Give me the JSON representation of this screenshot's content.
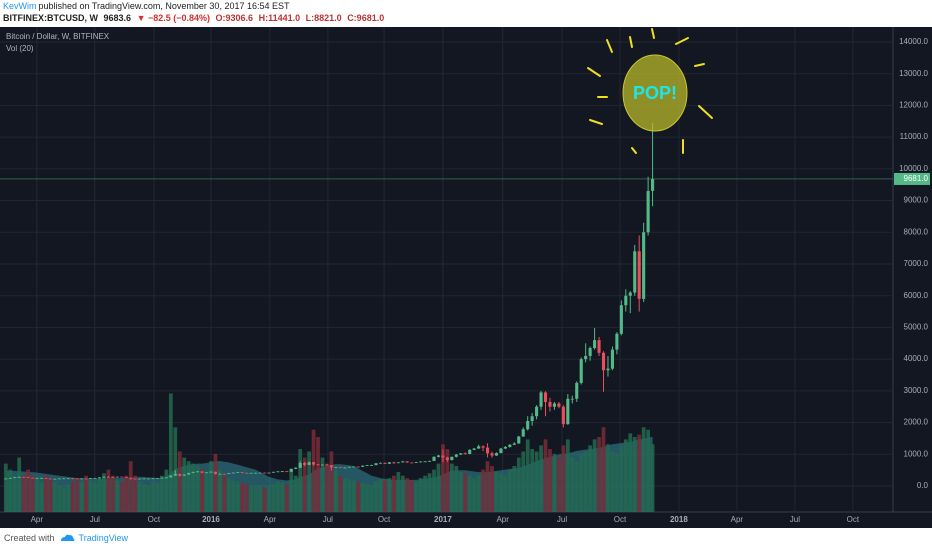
{
  "header": {
    "author": "KevWim",
    "published": "published on TradingView.com, November 30, 2017 16:54 EST",
    "symbol": "BITFINEX:BTCUSD, W",
    "price": "9683.6",
    "change": "▼ −82.5 (−0.84%)",
    "ohlc": [
      "O:9306.6",
      "H:11441.0",
      "L:8821.0",
      "C:9681.0"
    ]
  },
  "footer": {
    "created_with": "Created with",
    "brand": "TradingView"
  },
  "chart_data": {
    "type": "candlestick",
    "title": "Bitcoin / Dollar, W, BITFINEX",
    "volume_label": "Vol (20)",
    "annotation": "POP!",
    "categories": [
      null,
      null,
      null,
      null,
      null,
      null,
      null,
      null,
      null,
      null,
      null,
      null,
      null,
      null,
      null,
      null,
      null,
      null,
      null,
      null,
      null,
      null,
      null,
      null,
      null,
      null,
      null,
      null,
      null,
      null,
      null,
      null,
      null,
      null,
      null,
      null,
      null,
      null,
      null,
      null,
      null,
      null,
      null,
      null,
      null,
      null,
      null,
      null,
      null,
      null,
      null,
      null,
      null,
      null,
      null,
      null,
      null,
      null,
      null,
      null,
      null,
      null,
      null,
      null,
      null,
      null,
      null,
      null,
      null,
      null,
      null,
      null,
      null,
      null,
      null,
      null,
      null,
      null,
      null,
      null,
      null,
      null,
      null,
      null,
      null,
      null,
      null,
      null,
      null,
      null,
      null,
      null,
      null,
      null,
      null,
      null,
      null,
      null,
      null,
      null,
      null,
      null,
      null,
      null,
      null,
      null,
      null,
      null,
      null,
      null,
      null,
      null,
      null,
      null,
      null,
      null,
      null,
      null,
      null,
      null,
      null,
      null,
      null,
      null,
      null,
      null,
      null,
      null,
      null,
      null,
      null,
      null,
      null,
      null,
      null,
      null,
      null,
      null,
      null,
      null,
      null,
      null,
      null,
      null,
      null,
      null
    ],
    "open": [
      225,
      235,
      254,
      275,
      285,
      282,
      261,
      247,
      253,
      254,
      232,
      224,
      225,
      236,
      240,
      242,
      238,
      229,
      236,
      225,
      245,
      250,
      270,
      288,
      280,
      279,
      292,
      278,
      256,
      230,
      224,
      230,
      235,
      236,
      240,
      245,
      262,
      270,
      328,
      380,
      327,
      362,
      410,
      435,
      460,
      415,
      430,
      450,
      380,
      382,
      378,
      405,
      420,
      440,
      415,
      410,
      413,
      415,
      420,
      418,
      420,
      445,
      460,
      465,
      450,
      540,
      575,
      725,
      665,
      750,
      680,
      660,
      675,
      655,
      590,
      590,
      575,
      580,
      605,
      610,
      605,
      640,
      655,
      660,
      715,
      730,
      700,
      745,
      732,
      745,
      775,
      740,
      730,
      750,
      770,
      775,
      790,
      920,
      960,
      900,
      820,
      920,
      990,
      1030,
      1010,
      1140,
      1180,
      1250,
      1210,
      1030,
      960,
      1040,
      1180,
      1230,
      1300,
      1340,
      1560,
      1790,
      2050,
      2200,
      2500,
      2950,
      2650,
      2500,
      2600,
      2500,
      1950,
      2750,
      2750,
      3250,
      4000,
      4100,
      4350,
      4600,
      4200,
      3650,
      3700,
      4300,
      4800,
      5700,
      6000,
      6100,
      7400,
      5900,
      8000,
      9306.6
    ],
    "high": [
      245,
      262,
      285,
      298,
      295,
      288,
      268,
      262,
      262,
      258,
      240,
      232,
      242,
      246,
      250,
      248,
      242,
      240,
      240,
      252,
      258,
      278,
      300,
      315,
      290,
      298,
      295,
      282,
      262,
      238,
      235,
      242,
      242,
      246,
      250,
      268,
      280,
      340,
      500,
      390,
      370,
      420,
      450,
      470,
      468,
      440,
      465,
      455,
      395,
      390,
      412,
      430,
      445,
      442,
      420,
      418,
      422,
      426,
      425,
      428,
      450,
      466,
      472,
      470,
      550,
      590,
      780,
      760,
      770,
      760,
      690,
      680,
      690,
      660,
      600,
      595,
      590,
      610,
      620,
      615,
      650,
      665,
      670,
      725,
      740,
      740,
      755,
      760,
      750,
      790,
      780,
      745,
      760,
      780,
      785,
      800,
      935,
      980,
      1150,
      920,
      930,
      1010,
      1040,
      1060,
      1160,
      1200,
      1300,
      1280,
      1350,
      1080,
      1060,
      1200,
      1260,
      1320,
      1380,
      1580,
      1850,
      2200,
      2300,
      2550,
      3000,
      2990,
      2780,
      2650,
      2650,
      2550,
      2900,
      2850,
      3300,
      4050,
      4500,
      4400,
      4980,
      4700,
      4250,
      4100,
      4400,
      4850,
      5850,
      6200,
      6150,
      7600,
      7900,
      8300,
      9750,
      11441
    ],
    "low": [
      215,
      228,
      248,
      268,
      270,
      255,
      240,
      242,
      245,
      225,
      218,
      216,
      220,
      230,
      234,
      230,
      222,
      225,
      220,
      222,
      240,
      245,
      265,
      270,
      265,
      275,
      270,
      250,
      198,
      215,
      218,
      225,
      228,
      230,
      235,
      242,
      258,
      265,
      320,
      300,
      315,
      355,
      400,
      425,
      405,
      410,
      420,
      360,
      370,
      365,
      372,
      398,
      412,
      405,
      400,
      405,
      408,
      410,
      412,
      414,
      416,
      440,
      455,
      440,
      445,
      530,
      570,
      620,
      655,
      640,
      650,
      645,
      645,
      480,
      575,
      565,
      570,
      575,
      600,
      595,
      600,
      635,
      650,
      655,
      705,
      690,
      695,
      700,
      725,
      740,
      730,
      720,
      725,
      745,
      760,
      770,
      785,
      900,
      750,
      760,
      800,
      900,
      980,
      990,
      1000,
      1130,
      1170,
      1100,
      900,
      890,
      950,
      1030,
      1170,
      1210,
      1290,
      1330,
      1550,
      1750,
      1900,
      2100,
      2400,
      2200,
      2350,
      2400,
      2450,
      1850,
      1930,
      2600,
      2650,
      3200,
      3900,
      3950,
      4300,
      4100,
      2970,
      3450,
      3650,
      4150,
      4750,
      5500,
      5450,
      6000,
      5500,
      5800,
      7900,
      8821
    ],
    "close": [
      235,
      254,
      275,
      285,
      282,
      261,
      247,
      253,
      254,
      232,
      224,
      225,
      236,
      240,
      242,
      238,
      229,
      236,
      225,
      245,
      250,
      270,
      288,
      280,
      279,
      292,
      278,
      256,
      230,
      224,
      230,
      235,
      236,
      240,
      245,
      262,
      270,
      328,
      380,
      327,
      362,
      410,
      435,
      460,
      415,
      430,
      450,
      380,
      382,
      378,
      405,
      420,
      440,
      415,
      410,
      413,
      415,
      420,
      418,
      420,
      445,
      460,
      465,
      450,
      540,
      575,
      725,
      665,
      750,
      680,
      660,
      675,
      655,
      590,
      590,
      575,
      580,
      605,
      610,
      605,
      640,
      655,
      660,
      715,
      730,
      700,
      745,
      732,
      745,
      775,
      740,
      730,
      750,
      770,
      775,
      790,
      920,
      960,
      900,
      820,
      920,
      990,
      1030,
      1010,
      1140,
      1180,
      1250,
      1210,
      1030,
      960,
      1040,
      1180,
      1230,
      1300,
      1340,
      1560,
      1790,
      2050,
      2200,
      2500,
      2950,
      2650,
      2500,
      2600,
      2500,
      1950,
      2750,
      2750,
      3250,
      4000,
      4100,
      4350,
      4600,
      4200,
      3650,
      3700,
      4300,
      4800,
      5700,
      6000,
      6100,
      7400,
      5900,
      8000,
      9300,
      9681
    ],
    "volume": [
      400,
      350,
      300,
      450,
      300,
      350,
      300,
      280,
      250,
      300,
      280,
      250,
      220,
      200,
      230,
      250,
      280,
      250,
      300,
      260,
      240,
      280,
      320,
      350,
      300,
      260,
      250,
      300,
      420,
      300,
      250,
      230,
      220,
      250,
      240,
      300,
      350,
      980,
      700,
      500,
      450,
      420,
      400,
      380,
      350,
      330,
      420,
      480,
      350,
      300,
      280,
      260,
      250,
      240,
      230,
      220,
      210,
      220,
      200,
      210,
      230,
      250,
      240,
      230,
      350,
      300,
      520,
      450,
      500,
      680,
      620,
      450,
      400,
      500,
      350,
      300,
      280,
      270,
      260,
      250,
      240,
      230,
      220,
      250,
      270,
      260,
      280,
      300,
      330,
      300,
      280,
      260,
      250,
      280,
      300,
      320,
      350,
      400,
      560,
      520,
      400,
      380,
      330,
      320,
      300,
      280,
      300,
      350,
      420,
      380,
      330,
      320,
      300,
      350,
      380,
      450,
      500,
      600,
      520,
      500,
      550,
      600,
      520,
      480,
      450,
      550,
      600,
      450,
      420,
      480,
      500,
      550,
      600,
      620,
      700,
      560,
      500,
      480,
      550,
      600,
      650,
      620,
      640,
      700,
      680,
      560
    ],
    "volume_ma": [
      340,
      340,
      340,
      335,
      335,
      330,
      330,
      325,
      320,
      315,
      310,
      305,
      300,
      295,
      290,
      285,
      280,
      280,
      280,
      280,
      275,
      275,
      275,
      280,
      280,
      280,
      280,
      285,
      285,
      290,
      290,
      290,
      285,
      285,
      280,
      285,
      290,
      325,
      355,
      370,
      380,
      390,
      395,
      400,
      400,
      405,
      410,
      420,
      420,
      415,
      410,
      400,
      390,
      380,
      370,
      360,
      350,
      330,
      310,
      290,
      280,
      270,
      265,
      260,
      265,
      270,
      290,
      300,
      310,
      340,
      360,
      370,
      380,
      390,
      395,
      395,
      390,
      385,
      380,
      360,
      340,
      320,
      300,
      290,
      280,
      275,
      270,
      265,
      265,
      265,
      265,
      265,
      265,
      270,
      275,
      280,
      285,
      295,
      310,
      330,
      340,
      345,
      345,
      345,
      340,
      335,
      330,
      330,
      330,
      335,
      340,
      345,
      350,
      355,
      360,
      365,
      375,
      390,
      405,
      420,
      435,
      445,
      455,
      465,
      475,
      480,
      485,
      495,
      505,
      510,
      515,
      520,
      525,
      530,
      540,
      550,
      560,
      565,
      570,
      575,
      580,
      590,
      600,
      605,
      615,
      620
    ],
    "last_price": {
      "value": 9681,
      "label": "9681.0"
    },
    "colors": {
      "up": "#53b987",
      "down": "#eb4d5c",
      "volume_up": "#236a50",
      "volume_down": "#7a2b36",
      "volume_ma": "#3aa7b3"
    },
    "xlim": [
      -1.3,
      198.9
    ],
    "xticks": [
      {
        "value": 6.95,
        "label": "Apr"
      },
      {
        "value": 19.96,
        "label": "Jul"
      },
      {
        "value": 33.2,
        "label": "Oct"
      },
      {
        "value": 46,
        "label": "2016"
      },
      {
        "value": 59.2,
        "label": "Apr"
      },
      {
        "value": 72.2,
        "label": "Jul"
      },
      {
        "value": 84.8,
        "label": "Oct"
      },
      {
        "value": 98,
        "label": "2017"
      },
      {
        "value": 111.4,
        "label": "Apr"
      },
      {
        "value": 124.7,
        "label": "Jul"
      },
      {
        "value": 137.7,
        "label": "Oct"
      },
      {
        "value": 150.9,
        "label": "2018"
      },
      {
        "value": 163.9,
        "label": "Apr"
      },
      {
        "value": 176.9,
        "label": "Jul"
      },
      {
        "value": 189.9,
        "label": "Oct"
      }
    ],
    "ylim": [
      -820,
      14441
    ],
    "yticks": [
      {
        "value": 0,
        "label": "0.0"
      },
      {
        "value": 1000,
        "label": "1000.0"
      },
      {
        "value": 2000,
        "label": "2000.0"
      },
      {
        "value": 3000,
        "label": "3000.0"
      },
      {
        "value": 4000,
        "label": "4000.0"
      },
      {
        "value": 5000,
        "label": "5000.0"
      },
      {
        "value": 6000,
        "label": "6000.0"
      },
      {
        "value": 7000,
        "label": "7000.0"
      },
      {
        "value": 8000,
        "label": "8000.0"
      },
      {
        "value": 9000,
        "label": "9000.0"
      },
      {
        "value": 10000,
        "label": "10000.0"
      },
      {
        "value": 11000,
        "label": "11000.0"
      },
      {
        "value": 12000,
        "label": "12000.0"
      },
      {
        "value": 13000,
        "label": "13000.0"
      },
      {
        "value": 14000,
        "label": "14000.0"
      }
    ],
    "y2lim": [
      0,
      4000
    ],
    "grid": true
  }
}
